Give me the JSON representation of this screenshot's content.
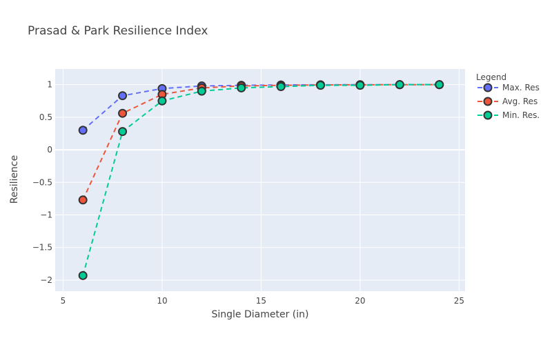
{
  "chart_data": {
    "type": "line",
    "title": "Prasad & Park Resilience Index",
    "xlabel": "Single Diameter (in)",
    "ylabel": "Resilience",
    "xlim": [
      4.6,
      25.3
    ],
    "ylim": [
      -2.17,
      1.24
    ],
    "x_ticks": [
      5,
      10,
      15,
      20,
      25
    ],
    "y_ticks": [
      -2,
      -1.5,
      -1,
      -0.5,
      0,
      0.5,
      1
    ],
    "x_tick_labels": [
      "5",
      "10",
      "15",
      "20",
      "25"
    ],
    "y_tick_labels": [
      "−2",
      "−1.5",
      "−1",
      "−0.5",
      "0",
      "0.5",
      "1"
    ],
    "grid": true,
    "legend": {
      "title": "Legend",
      "position": "right"
    },
    "x": [
      6,
      8,
      10,
      12,
      14,
      16,
      18,
      20,
      22,
      24
    ],
    "series": [
      {
        "name": "Max. Res",
        "color": "#636efa",
        "values": [
          0.3,
          0.83,
          0.94,
          0.98,
          0.99,
          0.995,
          0.998,
          0.999,
          1.0,
          1.0
        ]
      },
      {
        "name": "Avg. Res",
        "color": "#ef553b",
        "values": [
          -0.77,
          0.56,
          0.85,
          0.95,
          0.98,
          0.99,
          0.995,
          0.998,
          0.999,
          1.0
        ]
      },
      {
        "name": "Min. Res.",
        "color": "#00cc96",
        "values": [
          -1.93,
          0.28,
          0.75,
          0.9,
          0.95,
          0.97,
          0.99,
          0.99,
          1.0,
          1.0
        ]
      }
    ],
    "colors": {
      "plot_background": "#e5ecf6",
      "grid": "#ffffff",
      "marker_outline": "#333333"
    }
  }
}
